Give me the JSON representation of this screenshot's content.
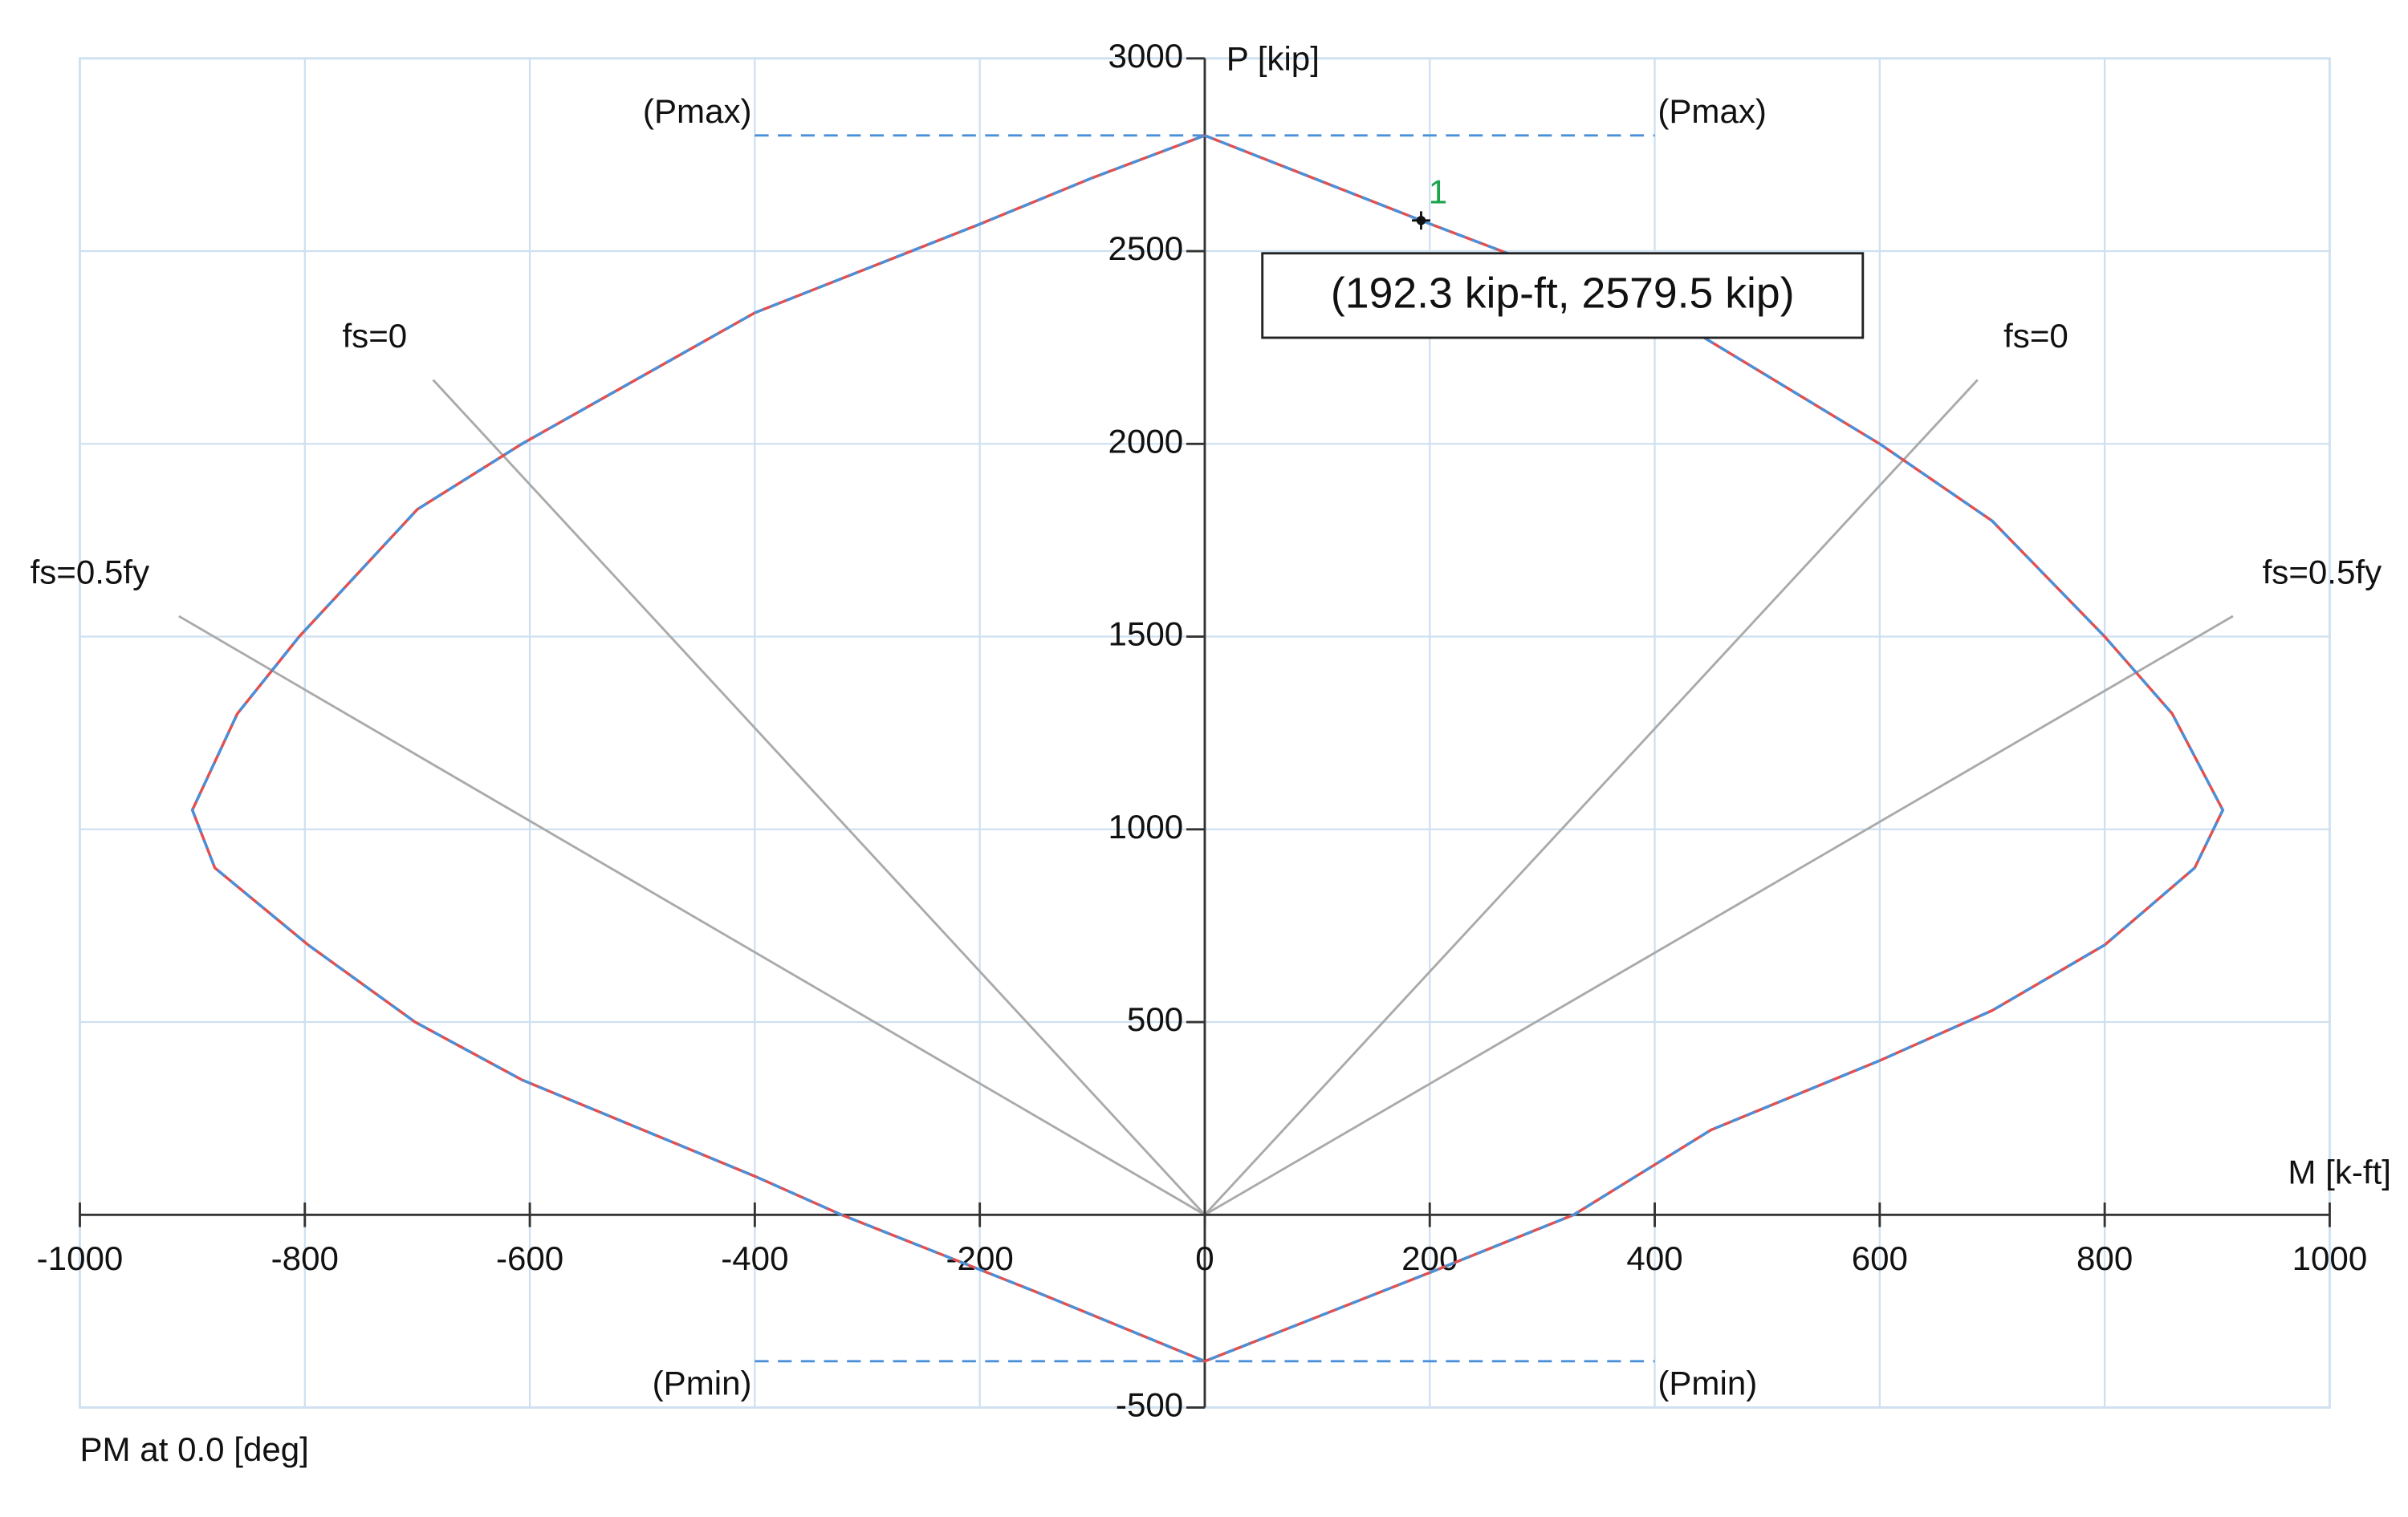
{
  "chart_data": {
    "type": "line",
    "x": [
      0,
      192.3,
      300,
      430,
      600,
      700,
      800,
      860,
      905,
      880,
      800,
      700,
      600,
      450,
      328,
      200,
      0,
      -150,
      -323,
      -400,
      -607,
      -702,
      -797,
      -880,
      -900,
      -860,
      -805,
      -700,
      -607,
      -400,
      -200,
      -100,
      0
    ],
    "series": [
      {
        "color": "#e05050",
        "dash_color": "#4a90d9",
        "values": [
          2800,
          2579.5,
          2460,
          2300,
          2000,
          1800,
          1500,
          1300,
          1050,
          900,
          700,
          530,
          400,
          220,
          0,
          -150,
          -380,
          -200,
          0,
          100,
          350,
          500,
          700,
          900,
          1050,
          1300,
          1500,
          1830,
          2000,
          2340,
          2570,
          2690,
          2800
        ]
      }
    ],
    "xlim": [
      -1000,
      1000
    ],
    "ylim": [
      -500,
      3000
    ],
    "xticks": [
      -1000,
      -800,
      -600,
      -400,
      -200,
      0,
      200,
      400,
      600,
      800,
      1000
    ],
    "yticks": [
      -500,
      500,
      1000,
      1500,
      2000,
      2500,
      3000
    ],
    "grid": true,
    "grid_color": "#cfe0f0",
    "xlabel": "M [k-ft]",
    "ylabel": "P [kip]",
    "footer": "PM at 0.0 [deg]",
    "reference_lines": [
      {
        "value": 2800,
        "xlim": [
          -400,
          400
        ],
        "labels": [
          "(Pmax)",
          "(Pmax)"
        ],
        "position": "above"
      },
      {
        "value": -380,
        "xlim": [
          -400,
          400
        ],
        "labels": [
          "(Pmin)",
          "(Pmin)"
        ],
        "position": "below"
      }
    ],
    "fs_lines": [
      {
        "label": "fs=0",
        "x": [
          0,
          -686
        ],
        "y": [
          0,
          2166
        ]
      },
      {
        "label": "fs=0",
        "x": [
          0,
          687
        ],
        "y": [
          0,
          2166
        ]
      },
      {
        "label": "fs=0.5fy",
        "x": [
          0,
          -912
        ],
        "y": [
          0,
          1553
        ]
      },
      {
        "label": "fs=0.5fy",
        "x": [
          0,
          914
        ],
        "y": [
          0,
          1553
        ]
      }
    ],
    "marker": {
      "label": "1",
      "x": 192.3,
      "y": 2579.5,
      "annotation": "(192.3 kip-ft, 2579.5 kip)"
    }
  }
}
